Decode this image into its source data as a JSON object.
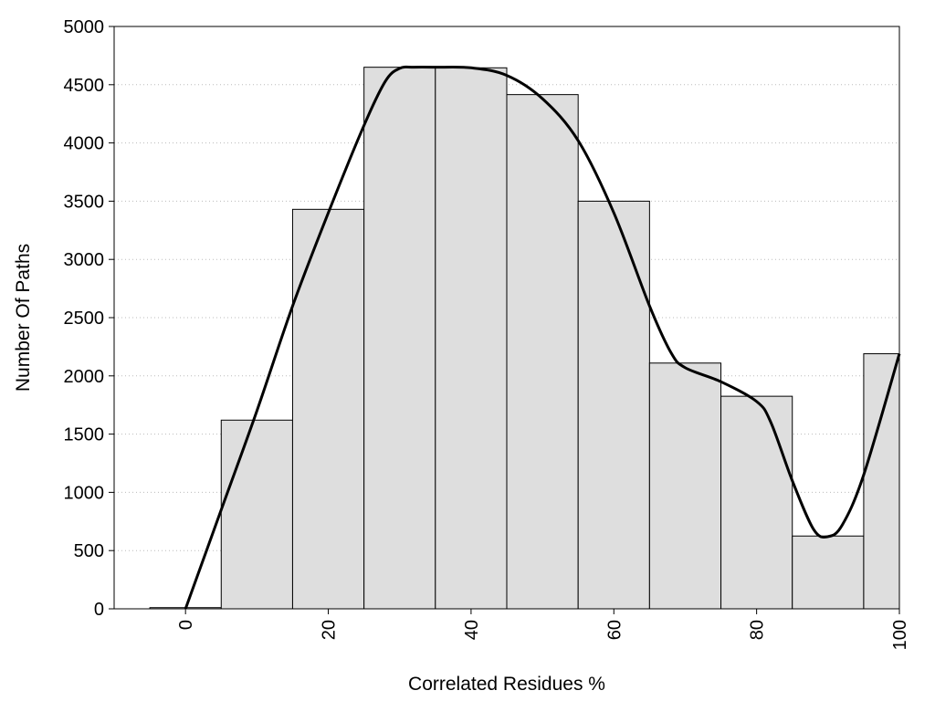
{
  "chart_data": {
    "type": "bar",
    "xlabel": "Correlated Residues %",
    "ylabel": "Number Of Paths",
    "xlim": [
      -10,
      100
    ],
    "ylim": [
      0,
      5000
    ],
    "grid": "horizontal dotted",
    "x_ticks": [
      "0",
      "20",
      "40",
      "60",
      "80",
      "100"
    ],
    "y_ticks": [
      "0",
      "500",
      "1000",
      "1500",
      "2000",
      "2500",
      "3000",
      "3500",
      "4000",
      "4500",
      "5000"
    ],
    "bin_width": 10,
    "bins": [
      0,
      10,
      20,
      30,
      40,
      50,
      60,
      70,
      80,
      90,
      100
    ],
    "values": [
      10,
      1620,
      3430,
      4650,
      4645,
      4415,
      3500,
      2110,
      1825,
      625,
      2190
    ],
    "smooth_curve": {
      "x": [
        0,
        5,
        10,
        15,
        20,
        25,
        28,
        30,
        32,
        35,
        40,
        45,
        50,
        55,
        60,
        65,
        68,
        70,
        75,
        80,
        82,
        85,
        88,
        90,
        92,
        95,
        100
      ],
      "y": [
        0,
        850,
        1700,
        2600,
        3400,
        4150,
        4530,
        4640,
        4650,
        4650,
        4645,
        4580,
        4380,
        4020,
        3400,
        2600,
        2200,
        2070,
        1950,
        1780,
        1600,
        1100,
        680,
        620,
        720,
        1150,
        2190
      ]
    },
    "colors": {
      "bar_fill": "#dedede",
      "bar_stroke": "#000000",
      "curve": "#000000",
      "grid": "#bbbbbb"
    }
  }
}
